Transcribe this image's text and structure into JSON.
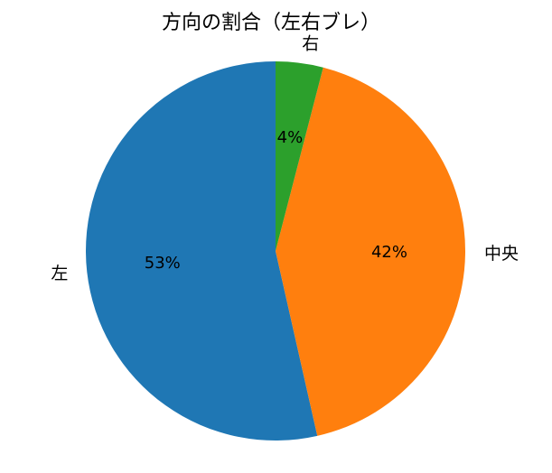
{
  "chart_data": {
    "type": "pie",
    "title": "方向の割合（左右ブレ）",
    "categories": [
      "左",
      "中央",
      "右"
    ],
    "values": [
      53,
      42,
      4
    ],
    "value_labels": [
      "53%",
      "42%",
      "4%"
    ],
    "colors": [
      "#1f77b4",
      "#ff7f0e",
      "#2ca02c"
    ]
  }
}
